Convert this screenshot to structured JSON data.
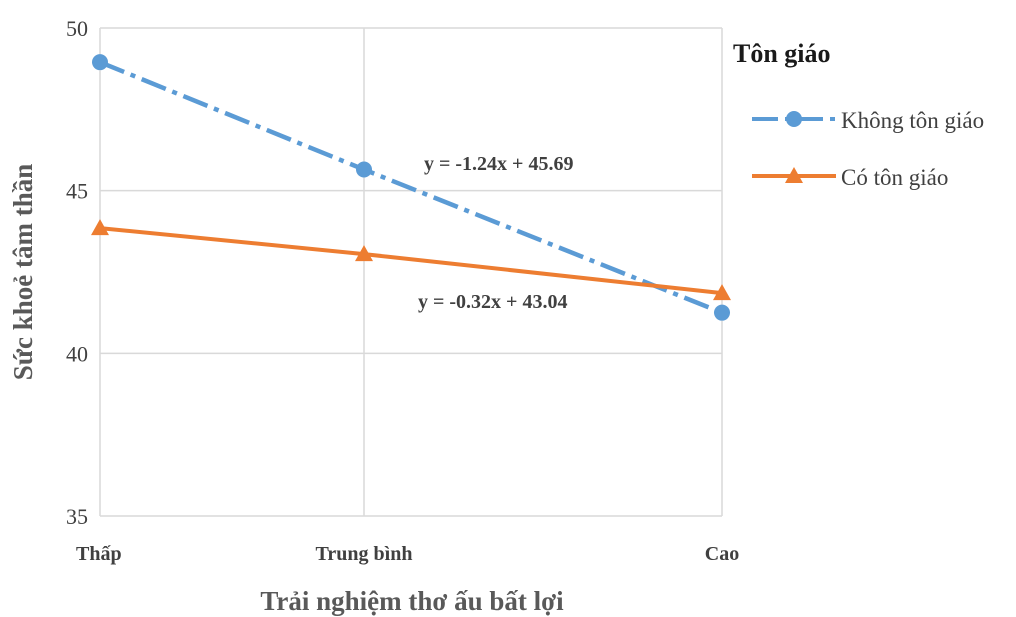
{
  "chart_data": {
    "type": "line",
    "categories": [
      "Thấp",
      "Trung bình",
      "Cao"
    ],
    "xlabel": "Trải nghiệm thơ ấu bất lợi",
    "ylabel": "Sức khoẻ tâm thần",
    "ylim": [
      35,
      50
    ],
    "yticks": [
      "35",
      "40",
      "45",
      "50"
    ],
    "grid": true,
    "legend": {
      "title": "Tôn giáo",
      "placement": "right"
    },
    "series": [
      {
        "name": "Không tôn giáo",
        "values": [
          48.95,
          45.65,
          41.25
        ],
        "color": "#5B9BD5",
        "style": "dash-dot",
        "marker": "circle"
      },
      {
        "name": "Có tôn giáo",
        "values": [
          43.85,
          43.05,
          41.85
        ],
        "color": "#ED7D31",
        "style": "solid",
        "marker": "triangle"
      }
    ],
    "annotations": [
      {
        "text": "y = -1.24x + 45.69",
        "series": 0
      },
      {
        "text": "y = -0.32x + 43.04",
        "series": 1
      }
    ]
  }
}
